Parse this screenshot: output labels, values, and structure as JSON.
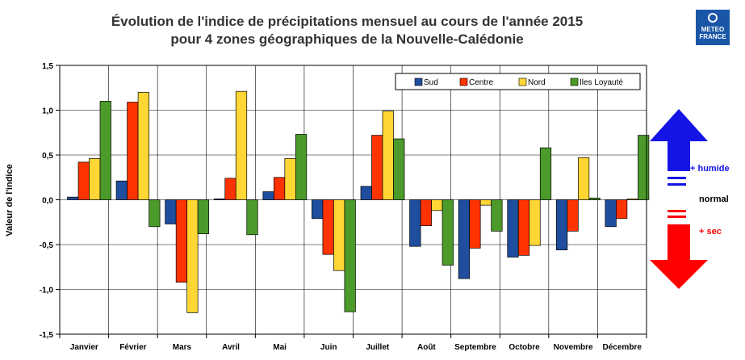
{
  "title": {
    "line1": "Évolution de l'indice de précipitations mensuel au cours de l'année 2015",
    "line2": "pour 4 zones géographiques de la Nouvelle-Calédonie"
  },
  "logo": {
    "line1": "METEO",
    "line2": "FRANCE"
  },
  "side_scale": {
    "wet_label": "+ humide",
    "normal_label": "normal",
    "dry_label": "+ sec",
    "up_arrow_color": "#1414e6",
    "down_arrow_color": "#ff0000"
  },
  "chart_data": {
    "type": "bar",
    "title": "",
    "xlabel": "",
    "ylabel": "Valeur de l'indice",
    "ylim": [
      -1.5,
      1.5
    ],
    "yticks": [
      -1.5,
      -1.0,
      -0.5,
      0.0,
      0.5,
      1.0,
      1.5
    ],
    "ytick_labels": [
      "-1,5",
      "-1,0",
      "-0,5",
      "0,0",
      "0,5",
      "1,0",
      "1,5"
    ],
    "grid": true,
    "legend_position": "top-right",
    "categories": [
      "Janvier",
      "Février",
      "Mars",
      "Avril",
      "Mai",
      "Juin",
      "Juillet",
      "Août",
      "Septembre",
      "Octobre",
      "Novembre",
      "Décembre"
    ],
    "series": [
      {
        "name": "Sud",
        "color": "#1f4e9e",
        "values": [
          0.03,
          0.21,
          -0.27,
          0.01,
          0.09,
          -0.21,
          0.15,
          -0.52,
          -0.88,
          -0.64,
          -0.56,
          -0.3
        ]
      },
      {
        "name": "Centre",
        "color": "#ff3300",
        "values": [
          0.42,
          1.09,
          -0.92,
          0.24,
          0.25,
          -0.61,
          0.72,
          -0.29,
          -0.54,
          -0.62,
          -0.35,
          -0.21
        ]
      },
      {
        "name": "Nord",
        "color": "#ffd633",
        "values": [
          0.46,
          1.2,
          -1.26,
          1.21,
          0.46,
          -0.79,
          0.99,
          -0.12,
          -0.06,
          -0.51,
          0.47,
          0.01
        ]
      },
      {
        "name": "Iles Loyauté",
        "color": "#4c9a2a",
        "values": [
          1.1,
          -0.3,
          -0.38,
          -0.39,
          0.73,
          -1.25,
          0.68,
          -0.73,
          -0.35,
          0.58,
          0.02,
          0.72
        ]
      }
    ]
  }
}
